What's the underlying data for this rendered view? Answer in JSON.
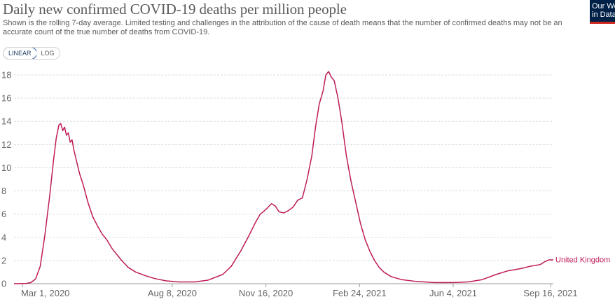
{
  "header": {
    "title": "Daily new confirmed COVID-19 deaths per million people",
    "subtitle": "Shown is the rolling 7-day average. Limited testing and challenges in the attribution of the cause of death means that the number of confirmed deaths may not be an accurate count of the true number of deaths from COVID-19.",
    "logo_text": "Our World\nin Data"
  },
  "controls": {
    "linear_label": "LINEAR",
    "log_label": "LOG",
    "selected": "LINEAR"
  },
  "colors": {
    "series": "#be1b59",
    "logo_bg": "#002147",
    "logo_accent": "#ce261e"
  },
  "chart_data": {
    "type": "line",
    "title": "Daily new confirmed COVID-19 deaths per million people",
    "xlabel": "",
    "ylabel": "",
    "ylim": [
      0,
      18
    ],
    "yticks": [
      0,
      2,
      4,
      6,
      8,
      10,
      12,
      14,
      16,
      18
    ],
    "xlim": [
      "2020-02-21",
      "2021-09-19"
    ],
    "xticks": [
      {
        "date": "2020-03-01",
        "label": "Mar 1, 2020"
      },
      {
        "date": "2020-08-08",
        "label": "Aug 8, 2020"
      },
      {
        "date": "2020-11-16",
        "label": "Nov 16, 2020"
      },
      {
        "date": "2021-02-24",
        "label": "Feb 24, 2021"
      },
      {
        "date": "2021-06-04",
        "label": "Jun 4, 2021"
      },
      {
        "date": "2021-09-16",
        "label": "Sep 16, 2021"
      }
    ],
    "grid": true,
    "legend": "end-of-line label",
    "series": [
      {
        "name": "United Kingdom",
        "points": [
          [
            "2020-02-21",
            0.0
          ],
          [
            "2020-03-05",
            0.02
          ],
          [
            "2020-03-10",
            0.1
          ],
          [
            "2020-03-15",
            0.4
          ],
          [
            "2020-03-20",
            1.5
          ],
          [
            "2020-03-25",
            4.2
          ],
          [
            "2020-03-30",
            7.5
          ],
          [
            "2020-04-03",
            10.5
          ],
          [
            "2020-04-06",
            12.5
          ],
          [
            "2020-04-09",
            13.7
          ],
          [
            "2020-04-11",
            13.8
          ],
          [
            "2020-04-13",
            13.2
          ],
          [
            "2020-04-15",
            13.5
          ],
          [
            "2020-04-17",
            12.8
          ],
          [
            "2020-04-19",
            13.0
          ],
          [
            "2020-04-21",
            12.2
          ],
          [
            "2020-04-23",
            12.4
          ],
          [
            "2020-04-25",
            11.5
          ],
          [
            "2020-04-28",
            10.5
          ],
          [
            "2020-05-01",
            9.5
          ],
          [
            "2020-05-05",
            8.5
          ],
          [
            "2020-05-10",
            7.0
          ],
          [
            "2020-05-15",
            5.8
          ],
          [
            "2020-05-20",
            5.0
          ],
          [
            "2020-05-25",
            4.3
          ],
          [
            "2020-05-30",
            3.8
          ],
          [
            "2020-06-05",
            3.0
          ],
          [
            "2020-06-10",
            2.5
          ],
          [
            "2020-06-15",
            2.0
          ],
          [
            "2020-06-22",
            1.4
          ],
          [
            "2020-06-30",
            1.0
          ],
          [
            "2020-07-10",
            0.7
          ],
          [
            "2020-07-20",
            0.45
          ],
          [
            "2020-08-01",
            0.25
          ],
          [
            "2020-08-15",
            0.15
          ],
          [
            "2020-09-01",
            0.15
          ],
          [
            "2020-09-15",
            0.3
          ],
          [
            "2020-10-01",
            0.8
          ],
          [
            "2020-10-10",
            1.5
          ],
          [
            "2020-10-20",
            2.8
          ],
          [
            "2020-10-28",
            4.0
          ],
          [
            "2020-11-05",
            5.3
          ],
          [
            "2020-11-10",
            6.0
          ],
          [
            "2020-11-16",
            6.4
          ],
          [
            "2020-11-22",
            6.9
          ],
          [
            "2020-11-26",
            6.7
          ],
          [
            "2020-11-30",
            6.2
          ],
          [
            "2020-12-05",
            6.1
          ],
          [
            "2020-12-10",
            6.3
          ],
          [
            "2020-12-15",
            6.6
          ],
          [
            "2020-12-20",
            7.2
          ],
          [
            "2020-12-25",
            7.4
          ],
          [
            "2020-12-30",
            9.0
          ],
          [
            "2021-01-04",
            11.0
          ],
          [
            "2021-01-08",
            13.5
          ],
          [
            "2021-01-12",
            15.5
          ],
          [
            "2021-01-16",
            16.6
          ],
          [
            "2021-01-19",
            18.0
          ],
          [
            "2021-01-22",
            18.3
          ],
          [
            "2021-01-25",
            17.8
          ],
          [
            "2021-01-28",
            17.5
          ],
          [
            "2021-02-01",
            16.0
          ],
          [
            "2021-02-05",
            14.0
          ],
          [
            "2021-02-10",
            11.0
          ],
          [
            "2021-02-15",
            8.8
          ],
          [
            "2021-02-20",
            7.0
          ],
          [
            "2021-02-25",
            5.2
          ],
          [
            "2021-03-02",
            3.8
          ],
          [
            "2021-03-07",
            2.8
          ],
          [
            "2021-03-12",
            2.0
          ],
          [
            "2021-03-17",
            1.4
          ],
          [
            "2021-03-22",
            1.0
          ],
          [
            "2021-03-30",
            0.6
          ],
          [
            "2021-04-10",
            0.35
          ],
          [
            "2021-04-25",
            0.2
          ],
          [
            "2021-05-15",
            0.1
          ],
          [
            "2021-06-04",
            0.1
          ],
          [
            "2021-06-20",
            0.15
          ],
          [
            "2021-07-05",
            0.35
          ],
          [
            "2021-07-20",
            0.8
          ],
          [
            "2021-08-01",
            1.1
          ],
          [
            "2021-08-15",
            1.3
          ],
          [
            "2021-08-25",
            1.5
          ],
          [
            "2021-09-05",
            1.65
          ],
          [
            "2021-09-10",
            1.9
          ],
          [
            "2021-09-14",
            2.05
          ],
          [
            "2021-09-19",
            2.05
          ]
        ]
      }
    ]
  }
}
